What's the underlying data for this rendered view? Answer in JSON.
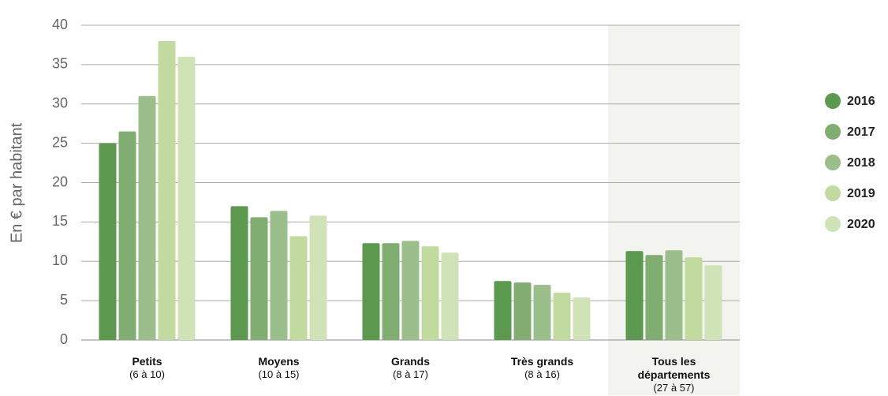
{
  "chart_data": {
    "type": "bar",
    "y_label": "En € par habitant",
    "categories": [
      "Petits",
      "Moyens",
      "Grands",
      "Très grands",
      "Tous les départements"
    ],
    "category_notes": [
      "(6 à 10)",
      "(10 à 15)",
      "(8 à 17)",
      "(8 à 16)",
      "(27 à 57)"
    ],
    "series": [
      {
        "name": "2016",
        "color": "#5b9a4e",
        "values": [
          25,
          17,
          12.3,
          7.5,
          11.3
        ]
      },
      {
        "name": "2017",
        "color": "#80ae70",
        "values": [
          26.5,
          15.6,
          12.3,
          7.3,
          10.8
        ]
      },
      {
        "name": "2018",
        "color": "#9bbf8a",
        "values": [
          31,
          16.4,
          12.6,
          7,
          11.4
        ]
      },
      {
        "name": "2019",
        "color": "#c1db9f",
        "values": [
          38,
          13.2,
          11.9,
          6,
          10.5
        ]
      },
      {
        "name": "2020",
        "color": "#cfe3b7",
        "values": [
          36,
          15.8,
          11.1,
          5.4,
          9.5
        ]
      }
    ],
    "ylim": [
      0,
      40
    ],
    "yticks": [
      0,
      5,
      10,
      15,
      20,
      25,
      30,
      35,
      40
    ],
    "grid": true,
    "highlight_index": 4,
    "legend": "right"
  }
}
